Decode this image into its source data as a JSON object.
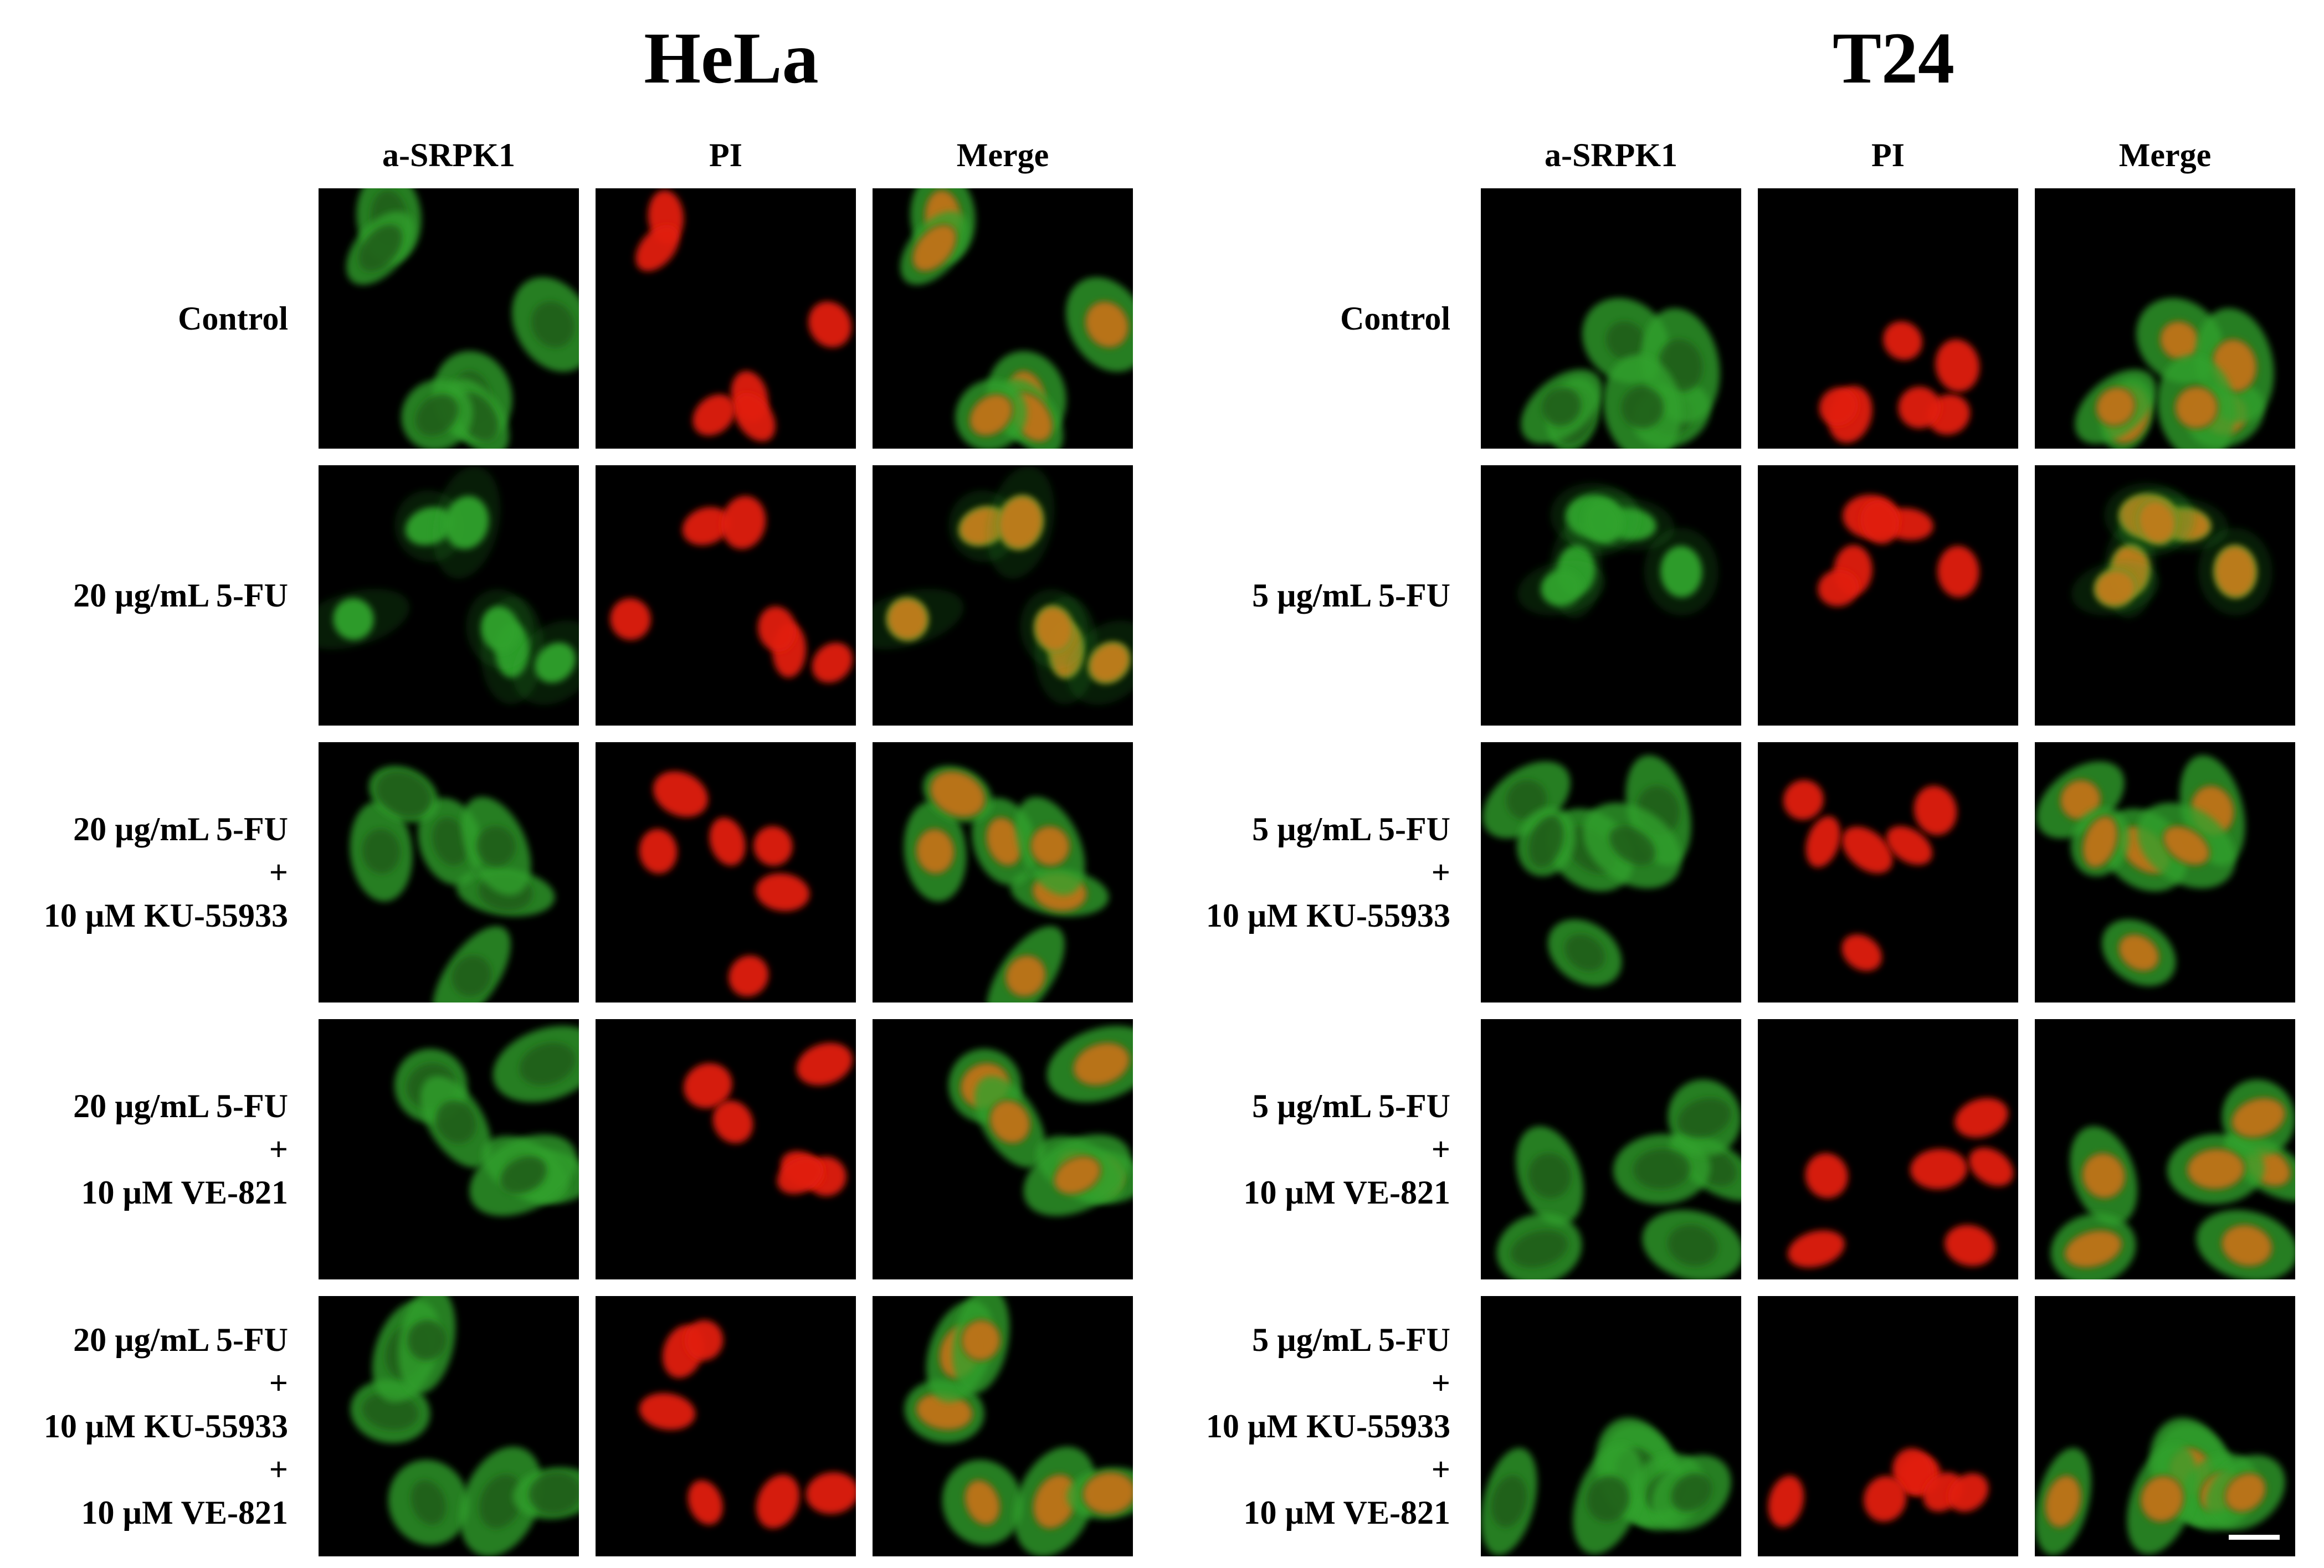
{
  "panels": [
    {
      "title": "HeLa",
      "columns": [
        "a-SRPK1",
        "PI",
        "Merge"
      ],
      "rows": [
        {
          "label_lines": [
            "Control"
          ]
        },
        {
          "label_lines": [
            "20 µg/mL 5-FU"
          ]
        },
        {
          "label_lines": [
            "20 µg/mL 5-FU",
            "+",
            "10 µM KU-55933"
          ]
        },
        {
          "label_lines": [
            "20 µg/mL 5-FU",
            "+",
            "10 µM VE-821"
          ]
        },
        {
          "label_lines": [
            "20 µg/mL 5-FU",
            "+",
            "10 µM KU-55933",
            "+",
            "10 µM VE-821"
          ]
        }
      ]
    },
    {
      "title": "T24",
      "columns": [
        "a-SRPK1",
        "PI",
        "Merge"
      ],
      "rows": [
        {
          "label_lines": [
            "Control"
          ]
        },
        {
          "label_lines": [
            "5 µg/mL 5-FU"
          ]
        },
        {
          "label_lines": [
            "5 µg/mL 5-FU",
            "+",
            "10 µM KU-55933"
          ]
        },
        {
          "label_lines": [
            "5 µg/mL 5-FU",
            "+",
            "10 µM VE-821"
          ]
        },
        {
          "label_lines": [
            "5 µg/mL 5-FU",
            "+",
            "10 µM KU-55933",
            "+",
            "10 µM VE-821"
          ]
        }
      ]
    }
  ],
  "colors": {
    "background": "#ffffff",
    "tile_background": "#000000",
    "srpk1_green": "#2fa12a",
    "pi_red": "#e01a12",
    "merge_orange": "#d2751a",
    "scale_bar": "#ffffff"
  },
  "icons": {
    "scale_bar": "scale-bar-icon"
  }
}
